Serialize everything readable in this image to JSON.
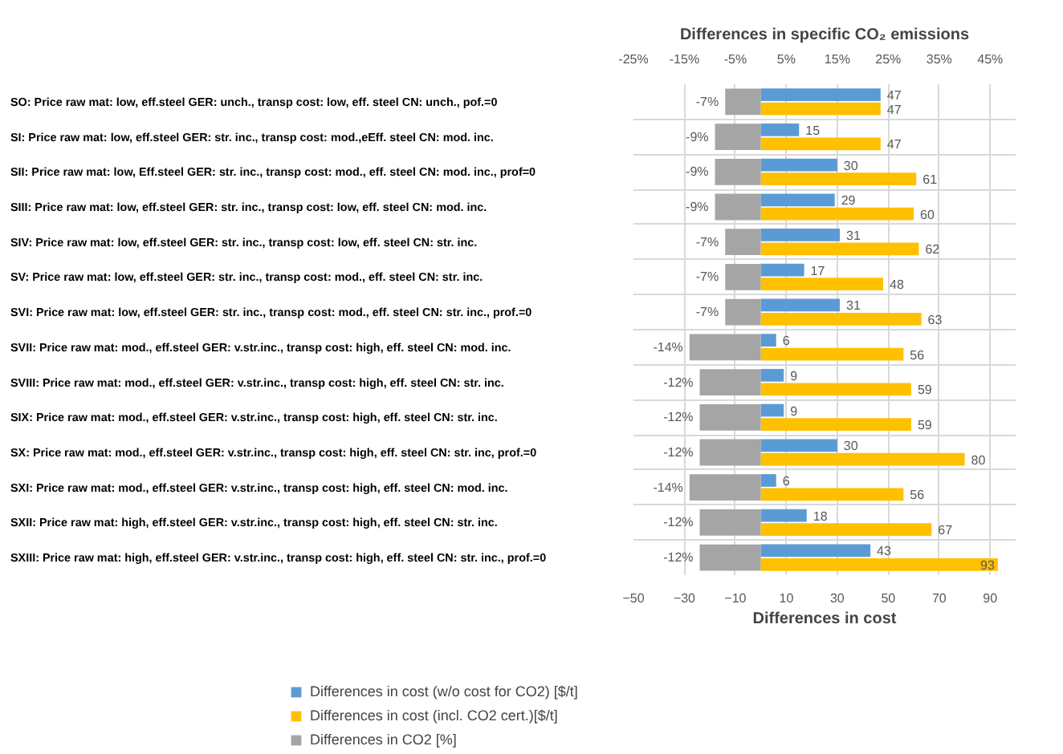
{
  "chart_data": {
    "type": "bar",
    "orientation": "horizontal",
    "categories": [
      "SO: Price raw mat: low, eff.steel GER: unch., transp cost: low, eff. steel CN: unch., pof.=0",
      "SI: Price raw mat: low, eff.steel GER: str. inc., transp cost: mod.,eEff. steel CN: mod. inc.",
      "SII: Price raw mat: low, Eff.steel GER: str. inc., transp cost: mod., eff. steel CN: mod. inc., prof=0",
      "SIII: Price raw mat: low, eff.steel GER: str. inc., transp cost: low, eff. steel CN: mod. inc.",
      "SIV: Price raw mat: low, eff.steel GER: str. inc., transp cost: low, eff. steel CN: str. inc.",
      "SV: Price raw mat: low, eff.steel GER: str. inc., transp cost: mod., eff. steel CN: str. inc.",
      "SVI: Price raw mat: low, eff.steel GER: str. inc., transp cost: mod., eff. steel CN: str. inc., prof.=0",
      "SVII: Price raw mat: mod., eff.steel GER: v.str.inc., transp cost: high, eff. steel CN: mod. inc.",
      "SVIII: Price raw mat: mod., eff.steel GER: v.str.inc., transp cost: high, eff. steel CN: str. inc.",
      "SIX: Price raw mat: mod., eff.steel GER: v.str.inc., transp cost: high, eff. steel CN: str. inc.",
      "SX: Price raw mat: mod., eff.steel GER: v.str.inc., transp cost: high, eff. steel CN: str. inc, prof.=0",
      "SXI: Price raw mat: mod., eff.steel GER: v.str.inc., transp cost: high, eff. steel CN: mod. inc.",
      "SXII: Price raw mat: high, eff.steel GER: v.str.inc., transp cost: high, eff. steel CN: str. inc.",
      "SXIII: Price raw mat: high, eff.steel GER: v.str.inc., transp cost: high, eff. steel CN: str. inc., prof.=0"
    ],
    "series": [
      {
        "name": "Differences in cost (w/o cost for CO2) [$/t]",
        "color": "#5b9bd5",
        "values": [
          47,
          15,
          30,
          29,
          31,
          17,
          31,
          6,
          9,
          9,
          30,
          6,
          18,
          43
        ],
        "value_labels": [
          "47",
          "15",
          "30",
          "29",
          "31",
          "17",
          "31",
          "6",
          "9",
          "9",
          "30",
          "6",
          "18",
          "43"
        ]
      },
      {
        "name": "Differences in cost (incl. CO2 cert.)[$/t]",
        "color": "#ffc000",
        "values": [
          47,
          47,
          61,
          60,
          62,
          48,
          63,
          56,
          59,
          59,
          80,
          56,
          67,
          93
        ],
        "value_labels": [
          "47",
          "47",
          "61",
          "60",
          "62",
          "48",
          "63",
          "56",
          "59",
          "59",
          "80",
          "56",
          "67",
          "93"
        ]
      },
      {
        "name": "Differences in CO2 [%]",
        "color": "#a5a5a5",
        "axis": "x2",
        "values": [
          -7,
          -9,
          -9,
          -9,
          -7,
          -7,
          -7,
          -14,
          -12,
          -12,
          -12,
          -14,
          -12,
          -12
        ],
        "value_labels": [
          "-7%",
          "-9%",
          "-9%",
          "-9%",
          "-7%",
          "-7%",
          "-7%",
          "-14%",
          "-12%",
          "-12%",
          "-12%",
          "-14%",
          "-12%",
          "-12%"
        ]
      }
    ],
    "xlabel": "Differences in cost",
    "x2label": "Differences in specific CO₂ emissions",
    "xlim": [
      -50,
      100
    ],
    "xticks": [
      -50,
      -30,
      -10,
      10,
      30,
      50,
      70,
      90
    ],
    "x2lim": [
      -25,
      50
    ],
    "x2ticks": [
      {
        "value": -25,
        "label": "-25%"
      },
      {
        "value": -15,
        "label": "-15%"
      },
      {
        "value": -5,
        "label": "-5%"
      },
      {
        "value": 5,
        "label": "5%"
      },
      {
        "value": 15,
        "label": "15%"
      },
      {
        "value": 25,
        "label": "25%"
      },
      {
        "value": 35,
        "label": "35%"
      },
      {
        "value": 45,
        "label": "45%"
      }
    ],
    "grid": true,
    "legend": "bottom"
  }
}
